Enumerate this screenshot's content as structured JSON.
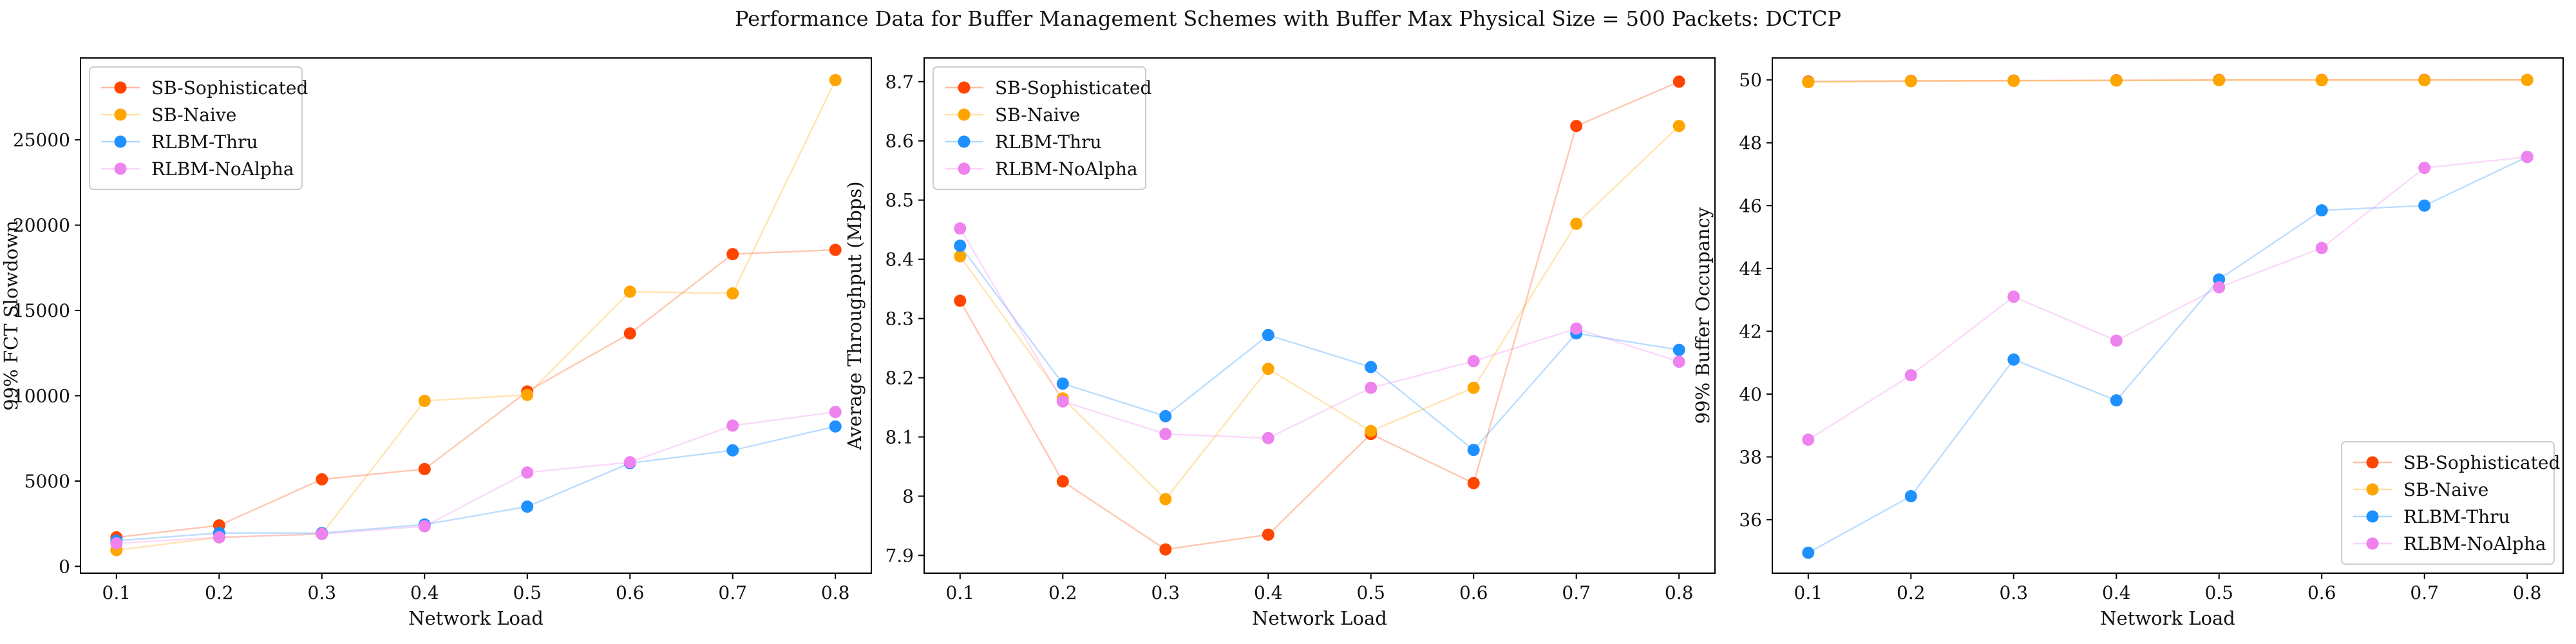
{
  "figure": {
    "suptitle": "Performance Data for Buffer Management Schemes with Buffer Max Physical Size = 500 Packets: DCTCP"
  },
  "colors": {
    "SB-Sophisticated": "#ff4500",
    "SB-Naive": "#ffa500",
    "RLBM-Thru": "#1e90ff",
    "RLBM-NoAlpha": "#ee82ee"
  },
  "chart_data": [
    {
      "type": "line",
      "title": "",
      "xlabel": "Network Load",
      "ylabel": "99% FCT Slowdown",
      "x": [
        0.1,
        0.2,
        0.3,
        0.4,
        0.5,
        0.6,
        0.7,
        0.8
      ],
      "xticks": [
        "0.1",
        "0.2",
        "0.3",
        "0.4",
        "0.5",
        "0.6",
        "0.7",
        "0.8"
      ],
      "yticks": [
        0,
        5000,
        10000,
        15000,
        20000,
        25000
      ],
      "xlim": [
        0.065,
        0.835
      ],
      "ylim": [
        -400,
        29800
      ],
      "legend": "top-left",
      "grid": false,
      "series": [
        {
          "name": "SB-Sophisticated",
          "values": [
            1700,
            2400,
            5100,
            5700,
            10250,
            13650,
            18300,
            18550
          ]
        },
        {
          "name": "SB-Naive",
          "values": [
            950,
            1700,
            1900,
            9700,
            10050,
            16100,
            16000,
            28500
          ]
        },
        {
          "name": "RLBM-Thru",
          "values": [
            1500,
            1950,
            1950,
            2450,
            3500,
            6050,
            6800,
            8200
          ]
        },
        {
          "name": "RLBM-NoAlpha",
          "values": [
            1350,
            1700,
            1900,
            2350,
            5500,
            6100,
            8250,
            9050
          ]
        }
      ]
    },
    {
      "type": "line",
      "title": "",
      "xlabel": "Network Load",
      "ylabel": "Average Throughput (Mbps)",
      "x": [
        0.1,
        0.2,
        0.3,
        0.4,
        0.5,
        0.6,
        0.7,
        0.8
      ],
      "xticks": [
        "0.1",
        "0.2",
        "0.3",
        "0.4",
        "0.5",
        "0.6",
        "0.7",
        "0.8"
      ],
      "yticks": [
        7.9,
        8.0,
        8.1,
        8.2,
        8.3,
        8.4,
        8.5,
        8.6,
        8.7
      ],
      "xlim": [
        0.065,
        0.835
      ],
      "ylim": [
        7.87,
        8.74
      ],
      "legend": "top-left",
      "grid": false,
      "series": [
        {
          "name": "SB-Sophisticated",
          "values": [
            8.33,
            8.025,
            7.91,
            7.935,
            8.105,
            8.022,
            8.625,
            8.7
          ]
        },
        {
          "name": "SB-Naive",
          "values": [
            8.405,
            8.165,
            7.995,
            8.215,
            8.11,
            8.183,
            8.46,
            8.625
          ]
        },
        {
          "name": "RLBM-Thru",
          "values": [
            8.423,
            8.19,
            8.135,
            8.272,
            8.218,
            8.078,
            8.275,
            8.247
          ]
        },
        {
          "name": "RLBM-NoAlpha",
          "values": [
            8.452,
            8.16,
            8.105,
            8.098,
            8.183,
            8.228,
            8.283,
            8.227
          ]
        }
      ]
    },
    {
      "type": "line",
      "title": "",
      "xlabel": "Network Load",
      "ylabel": "99% Buffer Occupancy",
      "x": [
        0.1,
        0.2,
        0.3,
        0.4,
        0.5,
        0.6,
        0.7,
        0.8
      ],
      "xticks": [
        "0.1",
        "0.2",
        "0.3",
        "0.4",
        "0.5",
        "0.6",
        "0.7",
        "0.8"
      ],
      "yticks": [
        36,
        38,
        40,
        42,
        44,
        46,
        48,
        50
      ],
      "xlim": [
        0.065,
        0.835
      ],
      "ylim": [
        34.3,
        50.7
      ],
      "legend": "bottom-right",
      "grid": false,
      "series": [
        {
          "name": "SB-Sophisticated",
          "values": [
            49.95,
            49.97,
            49.98,
            49.99,
            50.0,
            50.0,
            50.0,
            50.0
          ]
        },
        {
          "name": "SB-Naive",
          "values": [
            49.93,
            49.96,
            49.97,
            49.98,
            49.99,
            49.99,
            49.99,
            50.0
          ]
        },
        {
          "name": "RLBM-Thru",
          "values": [
            34.95,
            36.75,
            41.1,
            39.8,
            43.65,
            45.85,
            46.0,
            47.55
          ]
        },
        {
          "name": "RLBM-NoAlpha",
          "values": [
            38.55,
            40.6,
            43.1,
            41.7,
            43.4,
            44.65,
            47.2,
            47.55
          ]
        }
      ]
    }
  ]
}
